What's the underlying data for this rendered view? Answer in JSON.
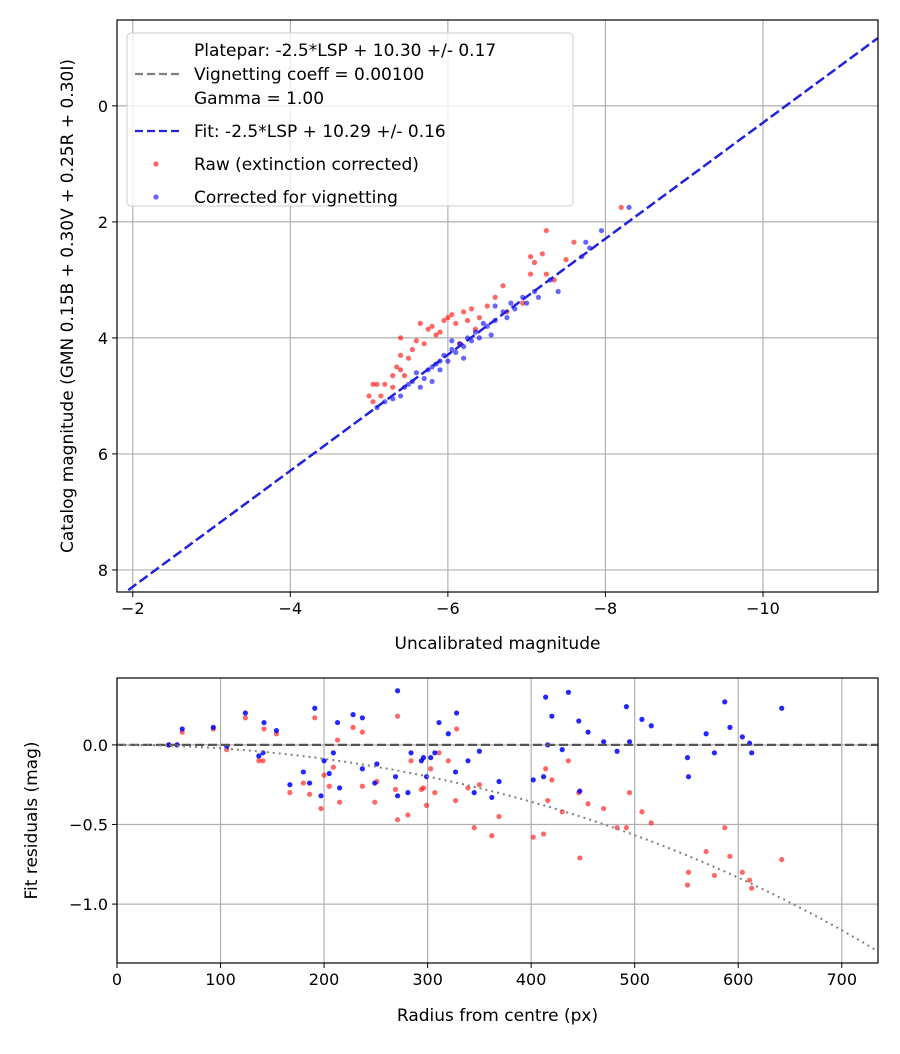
{
  "chart_data": [
    {
      "type": "scatter",
      "xlabel": "Uncalibrated magnitude",
      "ylabel": "Catalog magnitude (GMN 0.15B + 0.30V + 0.25R + 0.30I)",
      "xlim": [
        -1.8,
        -11.46
      ],
      "ylim": [
        8.38,
        -1.48
      ],
      "x_inverted": true,
      "y_inverted": true,
      "grid": true,
      "xticks": [
        -2,
        -4,
        -6,
        -8,
        -10
      ],
      "xtick_labels": [
        "−2",
        "−4",
        "−6",
        "−8",
        "−10"
      ],
      "yticks": [
        0,
        2,
        4,
        6,
        8
      ],
      "ytick_labels": [
        "0",
        "2",
        "4",
        "6",
        "8"
      ],
      "legend": {
        "placement": "top-left",
        "entries": [
          {
            "lines": [
              "Platepar: -2.5*LSP + 10.30 +/- 0.17",
              "Vignetting coeff = 0.00100",
              "Gamma = 1.00"
            ],
            "style": "dashed-line",
            "color": "#7f7f7f"
          },
          {
            "lines": [
              "Fit: -2.5*LSP + 10.29 +/- 0.16"
            ],
            "style": "dashed-line",
            "color": "#2222dd"
          },
          {
            "lines": [
              "Raw (extinction corrected)"
            ],
            "style": "dot",
            "color": "#ff0000"
          },
          {
            "lines": [
              "Corrected for vignetting"
            ],
            "style": "dot",
            "color": "#0000ff"
          }
        ]
      },
      "lines": [
        {
          "name": "Fit",
          "slope": 1,
          "intercept": 10.29,
          "color": "#2222dd"
        }
      ],
      "series": [
        {
          "name": "Raw (extinction corrected)",
          "color": "#ff0000",
          "points": [
            [
              -5.0,
              5.0
            ],
            [
              -5.05,
              4.8
            ],
            [
              -5.1,
              4.8
            ],
            [
              -5.2,
              4.8
            ],
            [
              -5.3,
              4.65
            ],
            [
              -5.35,
              4.5
            ],
            [
              -5.4,
              4.55
            ],
            [
              -5.4,
              4.3
            ],
            [
              -5.4,
              4.0
            ],
            [
              -5.5,
              4.35
            ],
            [
              -5.55,
              4.2
            ],
            [
              -5.6,
              4.05
            ],
            [
              -5.65,
              3.75
            ],
            [
              -5.7,
              4.1
            ],
            [
              -5.75,
              3.85
            ],
            [
              -5.8,
              3.8
            ],
            [
              -5.85,
              3.95
            ],
            [
              -5.9,
              3.9
            ],
            [
              -5.95,
              3.7
            ],
            [
              -6.0,
              3.65
            ],
            [
              -6.05,
              3.6
            ],
            [
              -6.1,
              3.75
            ],
            [
              -6.15,
              4.1
            ],
            [
              -6.2,
              3.55
            ],
            [
              -6.25,
              3.7
            ],
            [
              -6.3,
              3.5
            ],
            [
              -6.35,
              3.85
            ],
            [
              -6.4,
              3.65
            ],
            [
              -6.5,
              3.45
            ],
            [
              -6.6,
              3.3
            ],
            [
              -6.7,
              3.1
            ],
            [
              -6.75,
              3.55
            ],
            [
              -6.95,
              3.4
            ],
            [
              -7.05,
              2.9
            ],
            [
              -7.05,
              2.6
            ],
            [
              -7.1,
              2.7
            ],
            [
              -7.2,
              2.55
            ],
            [
              -7.25,
              2.9
            ],
            [
              -7.25,
              2.15
            ],
            [
              -7.35,
              3.0
            ],
            [
              -7.5,
              2.65
            ],
            [
              -7.6,
              2.35
            ],
            [
              -8.2,
              1.75
            ],
            [
              -5.3,
              4.85
            ],
            [
              -5.45,
              4.65
            ],
            [
              -5.05,
              5.1
            ],
            [
              -5.15,
              5.0
            ]
          ]
        },
        {
          "name": "Corrected for vignetting",
          "color": "#0000ff",
          "points": [
            [
              -5.1,
              5.2
            ],
            [
              -5.2,
              5.1
            ],
            [
              -5.4,
              5.0
            ],
            [
              -5.5,
              4.8
            ],
            [
              -5.55,
              4.75
            ],
            [
              -5.6,
              4.6
            ],
            [
              -5.7,
              4.7
            ],
            [
              -5.75,
              4.55
            ],
            [
              -5.8,
              4.5
            ],
            [
              -5.85,
              4.45
            ],
            [
              -5.9,
              4.4
            ],
            [
              -5.95,
              4.3
            ],
            [
              -6.0,
              4.4
            ],
            [
              -6.05,
              4.2
            ],
            [
              -6.1,
              4.25
            ],
            [
              -6.15,
              4.1
            ],
            [
              -6.2,
              4.15
            ],
            [
              -6.25,
              4.0
            ],
            [
              -6.3,
              4.05
            ],
            [
              -6.35,
              3.9
            ],
            [
              -6.4,
              4.0
            ],
            [
              -6.5,
              3.8
            ],
            [
              -6.55,
              3.95
            ],
            [
              -6.6,
              3.7
            ],
            [
              -6.7,
              3.55
            ],
            [
              -6.75,
              3.65
            ],
            [
              -6.8,
              3.4
            ],
            [
              -6.85,
              3.5
            ],
            [
              -6.95,
              3.3
            ],
            [
              -7.0,
              3.4
            ],
            [
              -7.1,
              3.2
            ],
            [
              -7.15,
              3.3
            ],
            [
              -7.3,
              3.0
            ],
            [
              -7.4,
              3.2
            ],
            [
              -7.7,
              2.6
            ],
            [
              -7.75,
              2.35
            ],
            [
              -7.8,
              2.45
            ],
            [
              -7.95,
              2.15
            ],
            [
              -8.3,
              1.75
            ],
            [
              -5.45,
              4.85
            ],
            [
              -5.65,
              4.85
            ],
            [
              -5.9,
              4.55
            ],
            [
              -6.2,
              4.35
            ],
            [
              -6.45,
              3.75
            ],
            [
              -6.05,
              4.05
            ],
            [
              -5.3,
              5.05
            ],
            [
              -6.6,
              3.45
            ],
            [
              -5.8,
              4.75
            ]
          ]
        }
      ]
    },
    {
      "type": "scatter",
      "xlabel": "Radius from centre (px)",
      "ylabel": "Fit residuals (mag)",
      "xlim": [
        0,
        735
      ],
      "ylim": [
        -1.37,
        0.42
      ],
      "grid": true,
      "xticks": [
        0,
        100,
        200,
        300,
        400,
        500,
        600,
        700
      ],
      "xtick_labels": [
        "0",
        "100",
        "200",
        "300",
        "400",
        "500",
        "600",
        "700"
      ],
      "yticks": [
        0.0,
        -0.5,
        -1.0
      ],
      "ytick_labels": [
        "0.0",
        "−0.5",
        "−1.0"
      ],
      "reference_lines": [
        {
          "name": "zero",
          "value": 0,
          "style": "dashed",
          "color": "#555555"
        },
        {
          "name": "vignetting model",
          "coeff": 0.001,
          "style": "dotted",
          "color": "#7f7f7f"
        }
      ],
      "radius": [
        50,
        58,
        63,
        93,
        106,
        124,
        137,
        141,
        142,
        154,
        167,
        180,
        186,
        191,
        197,
        200,
        205,
        209,
        213,
        215,
        228,
        237,
        237,
        249,
        251,
        269,
        271,
        271,
        281,
        284,
        294,
        296,
        299,
        303,
        307,
        311,
        320,
        327,
        328,
        339,
        345,
        350,
        362,
        369,
        402,
        412,
        414,
        416,
        420,
        430,
        436,
        447,
        446,
        455,
        470,
        483,
        492,
        495,
        507,
        516,
        551,
        552,
        569,
        577,
        587,
        592,
        604,
        611,
        613,
        642
      ],
      "series": [
        {
          "name": "Raw (extinction corrected)",
          "color": "#ff0000",
          "values": [
            0,
            0,
            0.08,
            0.1,
            -0.03,
            0.17,
            -0.1,
            -0.1,
            0.1,
            0.07,
            -0.3,
            -0.24,
            -0.31,
            0.17,
            -0.4,
            -0.19,
            -0.26,
            -0.14,
            0.03,
            -0.36,
            0.11,
            -0.26,
            0.08,
            -0.36,
            -0.23,
            -0.28,
            0.18,
            -0.47,
            -0.44,
            -0.1,
            -0.28,
            -0.27,
            -0.38,
            -0.15,
            -0.3,
            -0.05,
            -0.1,
            -0.35,
            0.1,
            -0.27,
            -0.52,
            -0.25,
            -0.57,
            -0.45,
            -0.58,
            -0.56,
            -0.15,
            -0.35,
            -0.22,
            -0.42,
            -0.1,
            -0.71,
            -0.3,
            -0.37,
            -0.4,
            -0.52,
            -0.52,
            -0.3,
            -0.42,
            -0.49,
            -0.88,
            -0.8,
            -0.67,
            -0.82,
            -0.52,
            -0.7,
            -0.8,
            -0.85,
            -0.9,
            -0.72
          ]
        },
        {
          "name": "Corrected for vignetting",
          "color": "#0000ff",
          "values": [
            0,
            0,
            0.1,
            0.11,
            -0.01,
            0.2,
            -0.07,
            -0.05,
            0.14,
            0.09,
            -0.25,
            -0.17,
            -0.24,
            0.23,
            -0.32,
            -0.1,
            -0.18,
            -0.05,
            0.14,
            -0.27,
            0.19,
            -0.15,
            0.17,
            -0.24,
            -0.12,
            -0.2,
            0.34,
            -0.32,
            -0.3,
            -0.05,
            -0.1,
            -0.08,
            -0.2,
            -0.08,
            -0.05,
            0.14,
            0.07,
            -0.17,
            0.2,
            -0.1,
            -0.3,
            -0.04,
            -0.33,
            -0.23,
            -0.22,
            -0.2,
            0.3,
            0.0,
            0.18,
            -0.03,
            0.33,
            -0.29,
            0.15,
            0.08,
            0.02,
            -0.04,
            0.24,
            0.02,
            0.16,
            0.12,
            -0.08,
            -0.2,
            0.07,
            -0.05,
            0.27,
            0.11,
            0.05,
            0.01,
            -0.05,
            0.23
          ]
        }
      ]
    }
  ]
}
